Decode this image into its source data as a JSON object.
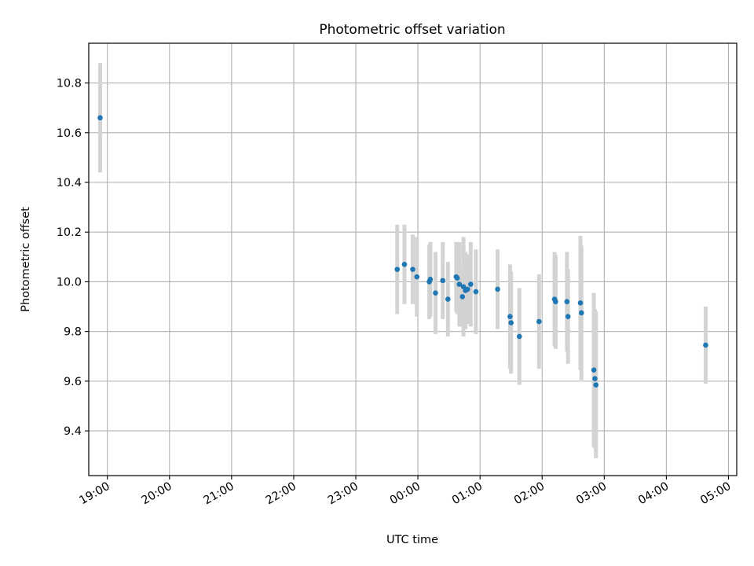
{
  "chart_data": {
    "type": "scatter",
    "title": "Photometric offset variation",
    "xlabel": "UTC time",
    "ylabel": "Photometric offset",
    "grid": true,
    "xlim": [
      "18:42",
      "05:08"
    ],
    "ylim": [
      9.22,
      10.96
    ],
    "x_ticks": [
      "19:00",
      "20:00",
      "21:00",
      "22:00",
      "23:00",
      "00:00",
      "01:00",
      "02:00",
      "03:00",
      "04:00",
      "05:00"
    ],
    "y_ticks": [
      "9.4",
      "9.6",
      "9.8",
      "10.0",
      "10.2",
      "10.4",
      "10.6",
      "10.8"
    ],
    "error_bar_color": "#d3d3d3",
    "point_color": "#1f77b4",
    "points": [
      {
        "x": "18:53",
        "y": 10.66,
        "err": 0.22
      },
      {
        "x": "23:40",
        "y": 10.05,
        "err": 0.18
      },
      {
        "x": "23:47",
        "y": 10.07,
        "err": 0.16
      },
      {
        "x": "23:55",
        "y": 10.05,
        "err": 0.14
      },
      {
        "x": "23:59",
        "y": 10.02,
        "err": 0.16
      },
      {
        "x": "00:11",
        "y": 10.0,
        "err": 0.15
      },
      {
        "x": "00:12",
        "y": 10.01,
        "err": 0.15
      },
      {
        "x": "00:17",
        "y": 9.955,
        "err": 0.165
      },
      {
        "x": "00:24",
        "y": 10.005,
        "err": 0.155
      },
      {
        "x": "00:29",
        "y": 9.93,
        "err": 0.15
      },
      {
        "x": "00:37",
        "y": 10.02,
        "err": 0.14
      },
      {
        "x": "00:38",
        "y": 10.015,
        "err": 0.145
      },
      {
        "x": "00:40",
        "y": 9.99,
        "err": 0.17
      },
      {
        "x": "00:43",
        "y": 9.94,
        "err": 0.12
      },
      {
        "x": "00:44",
        "y": 9.98,
        "err": 0.2
      },
      {
        "x": "00:46",
        "y": 9.965,
        "err": 0.155
      },
      {
        "x": "00:48",
        "y": 9.97,
        "err": 0.14
      },
      {
        "x": "00:51",
        "y": 9.99,
        "err": 0.17
      },
      {
        "x": "00:56",
        "y": 9.96,
        "err": 0.17
      },
      {
        "x": "01:17",
        "y": 9.97,
        "err": 0.16
      },
      {
        "x": "01:29",
        "y": 9.86,
        "err": 0.21
      },
      {
        "x": "01:30",
        "y": 9.835,
        "err": 0.205
      },
      {
        "x": "01:38",
        "y": 9.78,
        "err": 0.195
      },
      {
        "x": "01:57",
        "y": 9.84,
        "err": 0.19
      },
      {
        "x": "02:12",
        "y": 9.93,
        "err": 0.19
      },
      {
        "x": "02:13",
        "y": 9.92,
        "err": 0.19
      },
      {
        "x": "02:24",
        "y": 9.92,
        "err": 0.2
      },
      {
        "x": "02:25",
        "y": 9.86,
        "err": 0.19
      },
      {
        "x": "02:37",
        "y": 9.915,
        "err": 0.27
      },
      {
        "x": "02:38",
        "y": 9.875,
        "err": 0.27
      },
      {
        "x": "02:50",
        "y": 9.645,
        "err": 0.31
      },
      {
        "x": "02:51",
        "y": 9.61,
        "err": 0.28
      },
      {
        "x": "02:52",
        "y": 9.585,
        "err": 0.295
      },
      {
        "x": "04:38",
        "y": 9.745,
        "err": 0.155
      }
    ]
  }
}
